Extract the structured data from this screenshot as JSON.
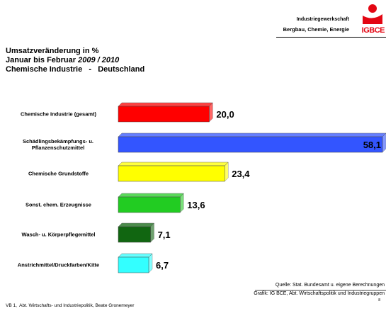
{
  "header": {
    "org_line1": "Industriegewerkschaft",
    "org_line2": "Bergbau, Chemie, Energie",
    "logo": "IGBCE"
  },
  "chart_data": {
    "type": "bar",
    "orientation": "horizontal",
    "title": "Umsatzveränderung in %",
    "subtitle": "Januar bis Februar ",
    "subtitle_italic": "2009 / 2010",
    "subtitle2": "Chemische Industrie   -   Deutschland",
    "categories": [
      "Chemische Industrie (gesamt)",
      "Schädlingsbekämpfungs- u. Pflanzenschutzmittel",
      "Chemische Grundstoffe",
      "Sonst. chem. Erzeugnisse",
      "Wasch- u. Körperpflegemittel",
      "Anstrichmittel/Druckfarben/Kitte"
    ],
    "values": [
      20.0,
      58.1,
      23.4,
      13.6,
      7.1,
      6.7
    ],
    "value_labels": [
      "20,0",
      "58,1",
      "23,4",
      "13,6",
      "7,1",
      "6,7"
    ],
    "colors": [
      "#ff0000",
      "#3355ff",
      "#ffff00",
      "#22cc22",
      "#116611",
      "#33ffff"
    ]
  },
  "footer": {
    "source": "Quelle: Stat. Bundesamt u. eigene Berechnungen",
    "graphic": "Grafik: IG BCE, Abt. Wirtschaftspolitik und Industriegruppen",
    "author": "VB 1,  Abt. Wirtschafts- und Industriepolitik, Beate Gronemeyer",
    "page": "8"
  }
}
